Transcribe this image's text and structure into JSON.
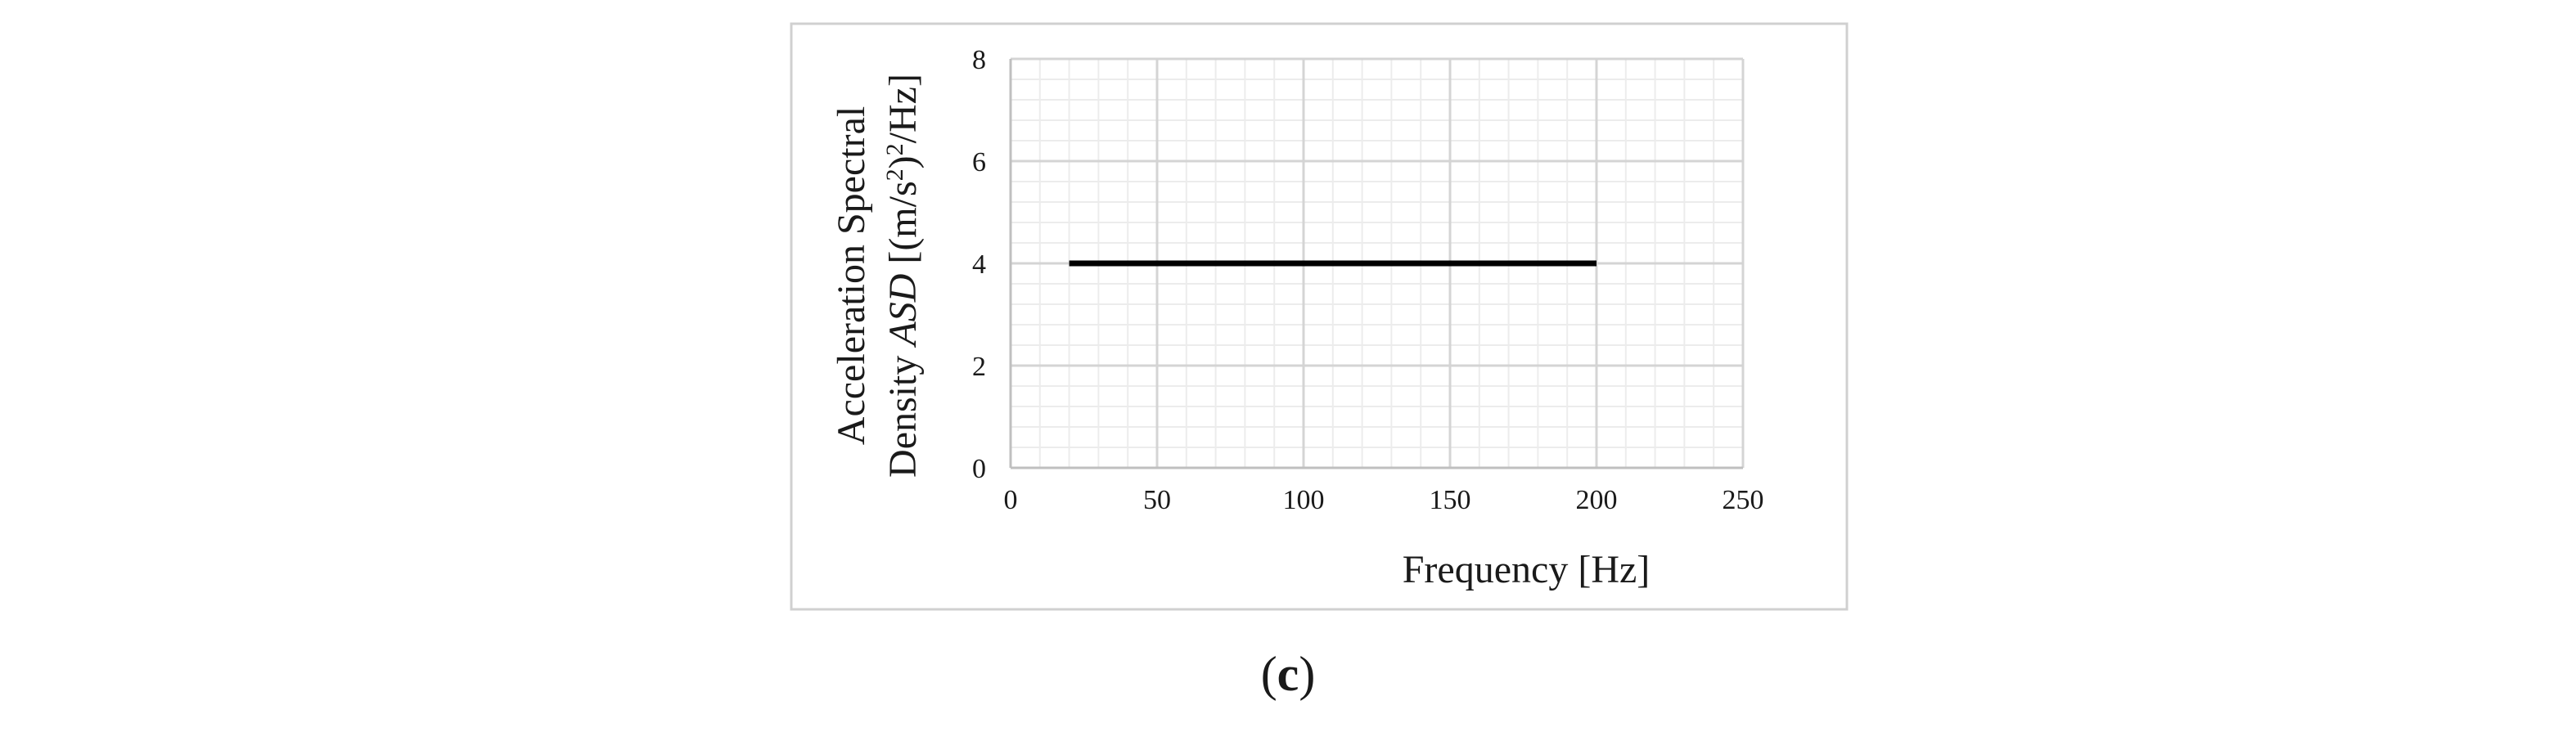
{
  "chart_data": {
    "type": "line",
    "title": "",
    "xlabel": "Frequency [Hz]",
    "ylabel_line1": "Acceleration Spectral",
    "ylabel_line2": {
      "prefix": "Density ",
      "symbol": "ASD",
      "unit_open": " [(m/s",
      "sup": "2",
      "unit_mid": ")",
      "sup2": "2",
      "unit_close": "/Hz]"
    },
    "xlim": [
      0,
      250
    ],
    "ylim": [
      0,
      8
    ],
    "xticks": [
      0,
      50,
      100,
      150,
      200,
      250
    ],
    "yticks": [
      0,
      2,
      4,
      6,
      8
    ],
    "x_minor_step": 10,
    "y_minor_step": 0.4,
    "grid": true,
    "legend": "none",
    "series": [
      {
        "x": [
          20,
          200
        ],
        "y": [
          4,
          4
        ],
        "color": "#000000"
      }
    ]
  },
  "panel_label": {
    "open": "(",
    "letter": "c",
    "close": ")"
  },
  "colors": {
    "frame": "#d0d0d0",
    "major_grid": "#d4d4d4",
    "minor_grid": "#ececec",
    "axis": "#bfbfbf",
    "line": "#000000"
  }
}
